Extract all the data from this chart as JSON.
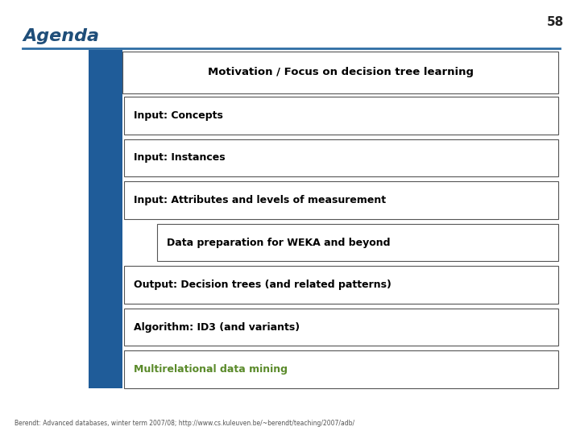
{
  "title": "Agenda",
  "slide_number": "58",
  "background_color": "#ffffff",
  "title_color": "#1f4e79",
  "blue_bar_color": "#1f5c99",
  "line_color": "#2e6da4",
  "box_border_color": "#555555",
  "box_bg_color": "#ffffff",
  "items": [
    {
      "text": "Motivation / Focus on decision tree learning",
      "indent": 0,
      "color": "#000000"
    },
    {
      "text": "Input: Concepts",
      "indent": 1,
      "color": "#000000"
    },
    {
      "text": "Input: Instances",
      "indent": 1,
      "color": "#000000"
    },
    {
      "text": "Input: Attributes and levels of measurement",
      "indent": 1,
      "color": "#000000"
    },
    {
      "text": "Data preparation for WEKA and beyond",
      "indent": 2,
      "color": "#000000"
    },
    {
      "text": "Output: Decision trees (and related patterns)",
      "indent": 1,
      "color": "#000000"
    },
    {
      "text": "Algorithm: ID3 (and variants)",
      "indent": 1,
      "color": "#000000"
    },
    {
      "text": "Multirelational data mining",
      "indent": 1,
      "color": "#5a8a2a"
    }
  ],
  "footer_text": "Berendt: Advanced databases, winter term 2007/08; http://www.cs.kuleuven.be/~berendt/teaching/2007/adb/",
  "footer_color": "#555555",
  "footer_link_color": "#2255aa"
}
